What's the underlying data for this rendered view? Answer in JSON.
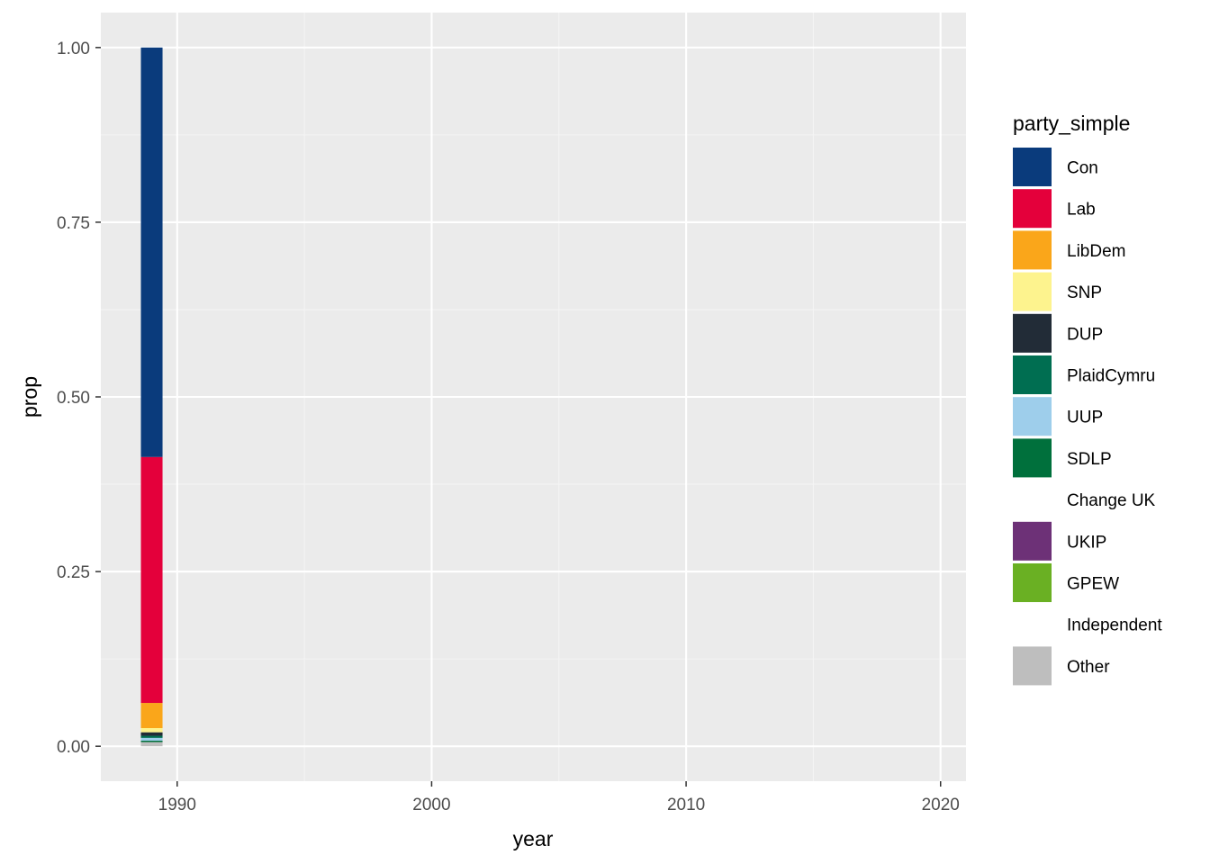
{
  "chart_data": {
    "type": "bar",
    "stacked": true,
    "xlabel": "year",
    "ylabel": "prop",
    "xlim": [
      1987.0,
      2021.0
    ],
    "ylim": [
      -0.05,
      1.05
    ],
    "x_ticks": [
      1990,
      2000,
      2010,
      2020
    ],
    "x_tick_labels": [
      "1990",
      "2000",
      "2010",
      "2020"
    ],
    "x_minor_ticks": [
      1995,
      2005,
      2015
    ],
    "y_ticks": [
      0.0,
      0.25,
      0.5,
      0.75,
      1.0
    ],
    "y_tick_labels": [
      "0.00",
      "0.25",
      "0.50",
      "0.75",
      "1.00"
    ],
    "grid": true,
    "legend_title": "party_simple",
    "legend_position": "right",
    "bar_width_years": 0.85,
    "series": [
      {
        "name": "Con",
        "color": "#0A3B7C",
        "x": [
          1989
        ],
        "values": [
          0.586
        ]
      },
      {
        "name": "Lab",
        "color": "#E4003B",
        "x": [
          1989
        ],
        "values": [
          0.352
        ]
      },
      {
        "name": "LibDem",
        "color": "#FAA61A",
        "x": [
          1989
        ],
        "values": [
          0.036
        ]
      },
      {
        "name": "SNP",
        "color": "#FDF38E",
        "x": [
          1989
        ],
        "values": [
          0.006
        ]
      },
      {
        "name": "DUP",
        "color": "#222C37",
        "x": [
          1989
        ],
        "values": [
          0.005
        ]
      },
      {
        "name": "PlaidCymru",
        "color": "#006E51",
        "x": [
          1989
        ],
        "values": [
          0.003
        ]
      },
      {
        "name": "UUP",
        "color": "#9ECEEB",
        "x": [
          1989
        ],
        "values": [
          0.004
        ]
      },
      {
        "name": "SDLP",
        "color": "#00703C",
        "x": [
          1989
        ],
        "values": [
          0.002
        ]
      },
      {
        "name": "Change UK",
        "color": "#FFFFFF",
        "x": [
          1989
        ],
        "values": [
          0.0
        ]
      },
      {
        "name": "UKIP",
        "color": "#6D3177",
        "x": [
          1989
        ],
        "values": [
          0.0
        ]
      },
      {
        "name": "GPEW",
        "color": "#6AB023",
        "x": [
          1989
        ],
        "values": [
          0.0
        ]
      },
      {
        "name": "Independent",
        "color": "#FFFFFF",
        "x": [
          1989
        ],
        "values": [
          0.0
        ]
      },
      {
        "name": "Other",
        "color": "#BEBEBE",
        "x": [
          1989
        ],
        "values": [
          0.006
        ]
      }
    ]
  },
  "colors": {
    "panel_background": "#EBEBEB",
    "grid_major": "#FFFFFF",
    "grid_minor": "#F4F4F4",
    "tick_text": "#4D4D4D",
    "tick_mark": "#333333"
  }
}
